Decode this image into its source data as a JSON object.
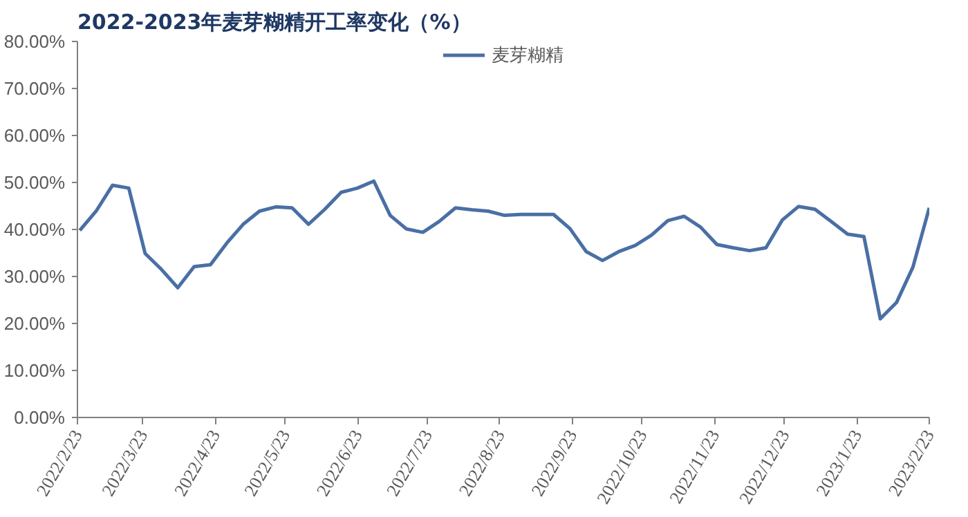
{
  "chart_data": {
    "type": "line",
    "title": "2022-2023年麦芽糊精开工率变化（%）",
    "legend": "top",
    "x": [
      "2022-02-24",
      "2022-03-03",
      "2022-03-10",
      "2022-03-17",
      "2022-03-24",
      "2022-03-31",
      "2022-04-07",
      "2022-04-14",
      "2022-04-21",
      "2022-04-28",
      "2022-05-05",
      "2022-05-12",
      "2022-05-19",
      "2022-05-26",
      "2022-06-02",
      "2022-06-09",
      "2022-06-16",
      "2022-06-23",
      "2022-06-30",
      "2022-07-07",
      "2022-07-14",
      "2022-07-21",
      "2022-07-28",
      "2022-08-04",
      "2022-08-11",
      "2022-08-18",
      "2022-08-25",
      "2022-09-01",
      "2022-09-08",
      "2022-09-15",
      "2022-09-22",
      "2022-09-29",
      "2022-10-06",
      "2022-10-13",
      "2022-10-20",
      "2022-10-27",
      "2022-11-03",
      "2022-11-10",
      "2022-11-17",
      "2022-11-24",
      "2022-12-01",
      "2022-12-08",
      "2022-12-15",
      "2022-12-22",
      "2022-12-29",
      "2023-01-05",
      "2023-01-12",
      "2023-01-19",
      "2023-01-26",
      "2023-02-02",
      "2023-02-09",
      "2023-02-16",
      "2023-02-23"
    ],
    "series": [
      {
        "name": "麦芽糊精",
        "color": "#4a6fa5",
        "values": [
          39.8,
          43.9,
          49.4,
          48.8,
          34.9,
          31.5,
          27.6,
          32.1,
          32.5,
          37.1,
          41.1,
          43.9,
          44.8,
          44.6,
          41.1,
          44.3,
          47.9,
          48.8,
          50.3,
          43.0,
          40.1,
          39.4,
          41.7,
          44.6,
          44.2,
          43.9,
          43.0,
          43.2,
          43.2,
          43.2,
          40.2,
          35.3,
          33.4,
          35.3,
          36.6,
          38.8,
          41.9,
          42.8,
          40.5,
          36.8,
          36.1,
          35.5,
          36.1,
          42.0,
          44.9,
          44.3,
          41.7,
          39.0,
          38.5,
          21.0,
          24.5,
          32.0,
          44.6
        ]
      }
    ],
    "xlim": [
      "2022-02-23",
      "2023-02-23"
    ],
    "xticks": [
      {
        "value": "2022-02-23",
        "label": "2022/2/23"
      },
      {
        "value": "2022-03-23",
        "label": "2022/3/23"
      },
      {
        "value": "2022-04-23",
        "label": "2022/4/23"
      },
      {
        "value": "2022-05-23",
        "label": "2022/5/23"
      },
      {
        "value": "2022-06-23",
        "label": "2022/6/23"
      },
      {
        "value": "2022-07-23",
        "label": "2022/7/23"
      },
      {
        "value": "2022-08-23",
        "label": "2022/8/23"
      },
      {
        "value": "2022-09-23",
        "label": "2022/9/23"
      },
      {
        "value": "2022-10-23",
        "label": "2022/10/23"
      },
      {
        "value": "2022-11-23",
        "label": "2022/11/23"
      },
      {
        "value": "2022-12-23",
        "label": "2022/12/23"
      },
      {
        "value": "2023-01-23",
        "label": "2023/1/23"
      },
      {
        "value": "2023-02-23",
        "label": "2023/2/23"
      }
    ],
    "ylim": [
      0,
      80
    ],
    "yticks": [
      {
        "value": 0,
        "label": "0.00%"
      },
      {
        "value": 10,
        "label": "10.00%"
      },
      {
        "value": 20,
        "label": "20.00%"
      },
      {
        "value": 30,
        "label": "30.00%"
      },
      {
        "value": 40,
        "label": "40.00%"
      },
      {
        "value": 50,
        "label": "50.00%"
      },
      {
        "value": 60,
        "label": "60.00%"
      },
      {
        "value": 70,
        "label": "70.00%"
      },
      {
        "value": 80,
        "label": "80.00%"
      }
    ]
  }
}
